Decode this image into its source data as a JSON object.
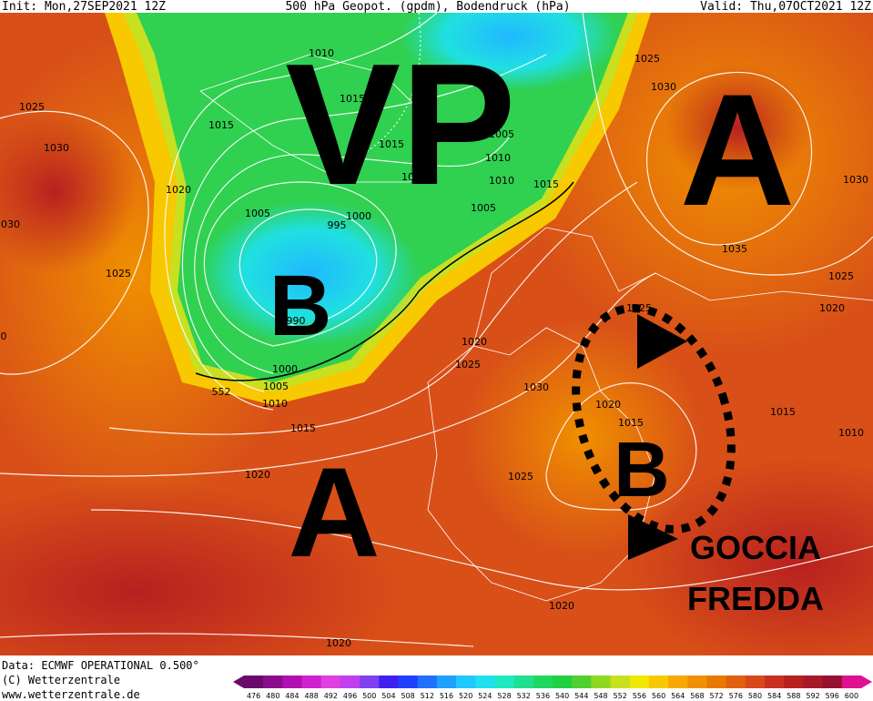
{
  "header": {
    "init": "Init: Mon,27SEP2021 12Z",
    "title": "500 hPa Geopot. (gpdm), Bodendruck (hPa)",
    "valid": "Valid: Thu,07OCT2021 12Z"
  },
  "map_labels": [
    "VP",
    "A",
    "B",
    "A",
    "B",
    "GOCCIA",
    "FREDDA"
  ],
  "isobar_labels": [
    "1025",
    "1030",
    "1030",
    "1020",
    "1025",
    "1015",
    "1010",
    "1015",
    "1015",
    "1010",
    "1005",
    "1000",
    "995",
    "990",
    "1000",
    "1005",
    "1010",
    "1015",
    "1020",
    "1005",
    "1010",
    "1010",
    "1005",
    "1015",
    "1025",
    "1030",
    "1035",
    "1030",
    "1025",
    "1020",
    "1025",
    "1020",
    "1025",
    "1030",
    "1020",
    "1015",
    "1015",
    "1010",
    "1025",
    "1020",
    "1020",
    "552",
    "0"
  ],
  "footer": {
    "data": "Data: ECMWF OPERATIONAL 0.500°",
    "copyright": "(C) Wetterzentrale",
    "url": "www.wetterzentrale.de"
  },
  "color_scale": {
    "values": [
      476,
      480,
      484,
      488,
      492,
      496,
      500,
      504,
      508,
      512,
      516,
      520,
      524,
      528,
      532,
      536,
      540,
      544,
      548,
      552,
      556,
      560,
      564,
      568,
      572,
      576,
      580,
      584,
      588,
      592,
      596,
      600
    ],
    "colors": [
      "#6a0a6a",
      "#8b0d8b",
      "#b010b0",
      "#d020d0",
      "#e040e0",
      "#c040f0",
      "#8040f0",
      "#4020f0",
      "#2040ff",
      "#2070ff",
      "#20a0ff",
      "#20c8ff",
      "#20e0f0",
      "#20e8c0",
      "#20e090",
      "#20d860",
      "#20d040",
      "#50d030",
      "#90d820",
      "#c8e020",
      "#f0e800",
      "#f8c800",
      "#f8a800",
      "#f09000",
      "#e87800",
      "#e06010",
      "#d84818",
      "#c83020",
      "#b82020",
      "#a81828",
      "#981030",
      "#e01090"
    ]
  }
}
